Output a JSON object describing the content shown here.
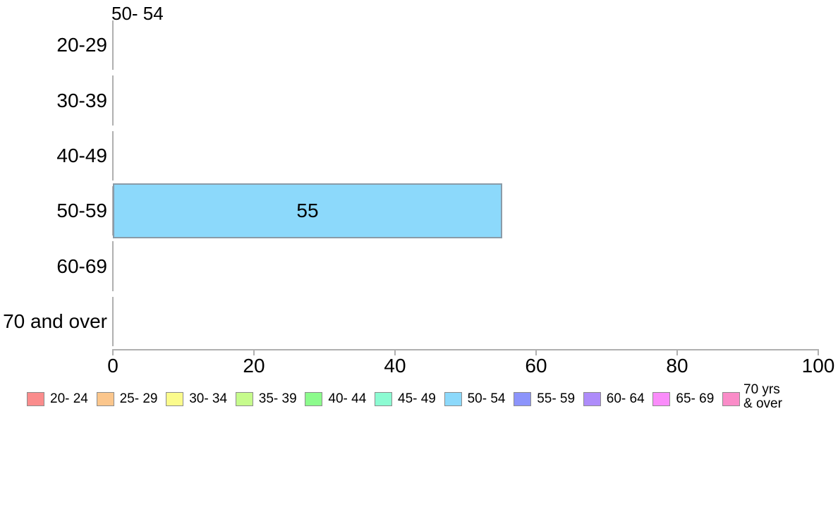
{
  "chart_data": {
    "type": "bar",
    "orientation": "horizontal",
    "title": "50- 54",
    "categories": [
      "20-29",
      "30-39",
      "40-49",
      "50-59",
      "60-69",
      "70 and over"
    ],
    "values": [
      0,
      0,
      0,
      55,
      0,
      0
    ],
    "value_labels": [
      "",
      "",
      "",
      "55",
      "",
      ""
    ],
    "xlabel": "",
    "ylabel": "",
    "xlim": [
      0,
      100
    ],
    "x_ticks": [
      "0",
      "20",
      "40",
      "60",
      "80",
      "100"
    ],
    "grid": false,
    "legend_position": "bottom",
    "colors": {
      "bar_fill": "#8CD9FB",
      "bar_border": "#8A9BA8",
      "axis": "#B0B0B0",
      "text": "#000000",
      "background": "#FFFFFF",
      "legend_swatch_border": "#8C8C8C"
    },
    "legend": [
      {
        "label": "20- 24",
        "color": "#FA8C8C"
      },
      {
        "label": "25- 29",
        "color": "#FBC68C"
      },
      {
        "label": "30- 34",
        "color": "#FBFB8C"
      },
      {
        "label": "35- 39",
        "color": "#C6FB8C"
      },
      {
        "label": "40- 44",
        "color": "#8CFB8C"
      },
      {
        "label": "45- 49",
        "color": "#8CFBD2"
      },
      {
        "label": "50- 54",
        "color": "#8CD9FB"
      },
      {
        "label": "55- 59",
        "color": "#8C94FB"
      },
      {
        "label": "60- 64",
        "color": "#AE8CFA"
      },
      {
        "label": "65- 69",
        "color": "#FA8CFA"
      },
      {
        "label": "70 yrs\n& over",
        "color": "#FA8CC8"
      }
    ]
  }
}
